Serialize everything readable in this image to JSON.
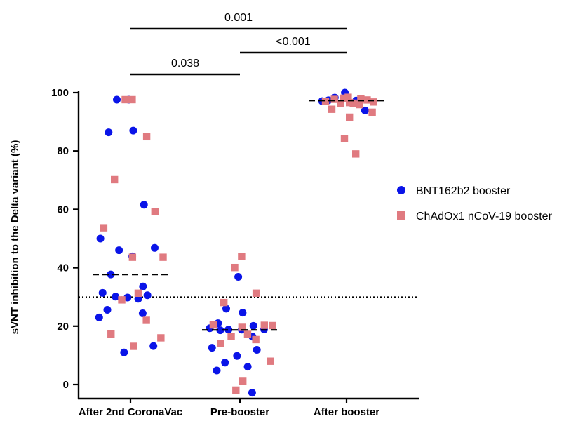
{
  "chart_data": {
    "type": "scatter",
    "ylabel": "sVNT inhibition to the Delta variant (%)",
    "ylim": [
      0,
      100
    ],
    "yticks": [
      0,
      20,
      40,
      60,
      80,
      100
    ],
    "categories": [
      "After 2nd CoronaVac",
      "Pre-booster",
      "After booster"
    ],
    "threshold": 30,
    "medians": [
      37.7,
      18.7,
      97.3
    ],
    "legend_position": "right",
    "series": [
      {
        "name": "BNT162b2 booster",
        "color": "#0a14e8",
        "marker": "circle",
        "points": [
          {
            "category": "After 2nd CoronaVac",
            "values": [
              97.6,
              97.6,
              87.0,
              86.4,
              61.6,
              50.0,
              46.8,
              46.0,
              43.9,
              37.7,
              33.6,
              31.4,
              30.6,
              29.8,
              30.1,
              29.4,
              25.6,
              24.4,
              23.0,
              13.2,
              11.0
            ]
          },
          {
            "category": "Pre-booster",
            "values": [
              36.9,
              26.0,
              24.6,
              21.0,
              20.1,
              19.3,
              18.9,
              18.8,
              18.8,
              18.6,
              16.4,
              12.6,
              11.9,
              9.8,
              7.5,
              6.1,
              4.8,
              -2.8
            ]
          },
          {
            "category": "After booster",
            "values": [
              100.0,
              98.3,
              98.2,
              97.4,
              97.3,
              97.1,
              93.9
            ]
          }
        ]
      },
      {
        "name": "ChAdOx1 nCoV-19 booster",
        "color": "#e07a80",
        "marker": "square",
        "points": [
          {
            "category": "After 2nd CoronaVac",
            "values": [
              97.6,
              97.6,
              84.9,
              70.2,
              59.3,
              53.7,
              43.6,
              43.6,
              31.3,
              29.0,
              22.0,
              17.3,
              16.0,
              13.1
            ]
          },
          {
            "category": "Pre-booster",
            "values": [
              43.9,
              40.1,
              31.3,
              28.1,
              20.3,
              20.4,
              20.2,
              19.6,
              17.2,
              16.4,
              15.4,
              14.1,
              8.0,
              1.1,
              -1.9
            ]
          },
          {
            "category": "After booster",
            "values": [
              98.4,
              98.1,
              97.9,
              97.7,
              97.5,
              97.0,
              96.8,
              96.6,
              96.4,
              96.2,
              95.9,
              94.3,
              93.3,
              91.6,
              84.3,
              79.0
            ]
          }
        ]
      }
    ],
    "comparisons": [
      {
        "from": "After 2nd CoronaVac",
        "to": "After booster",
        "p": "0.001",
        "level": 3
      },
      {
        "from": "Pre-booster",
        "to": "After booster",
        "p": "<0.001",
        "level": 2
      },
      {
        "from": "After 2nd CoronaVac",
        "to": "Pre-booster",
        "p": "0.038",
        "level": 1
      }
    ]
  }
}
